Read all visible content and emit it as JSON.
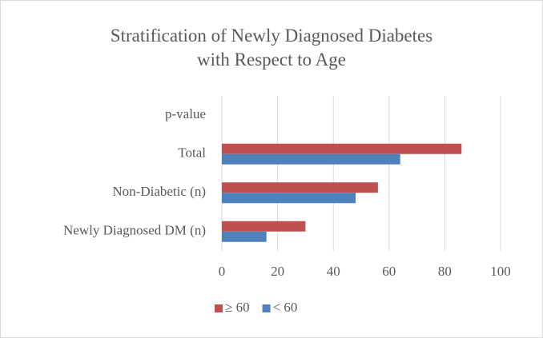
{
  "chart_data": {
    "type": "hbar",
    "title": "Stratification of Newly Diagnosed Diabetes with Respect to Age",
    "categories": [
      "p-value",
      "Total",
      "Non-Diabetic (n)",
      "Newly Diagnosed DM (n)"
    ],
    "series": [
      {
        "name": "≥ 60",
        "color": "#c0504d",
        "values": [
          0,
          86,
          56,
          30
        ]
      },
      {
        "name": "< 60",
        "color": "#4f81bd",
        "values": [
          0,
          64,
          48,
          16
        ]
      }
    ],
    "xlim": [
      0,
      100
    ],
    "xticks": [
      0,
      20,
      40,
      60,
      80,
      100
    ],
    "grid": true,
    "legend": "bottom"
  }
}
